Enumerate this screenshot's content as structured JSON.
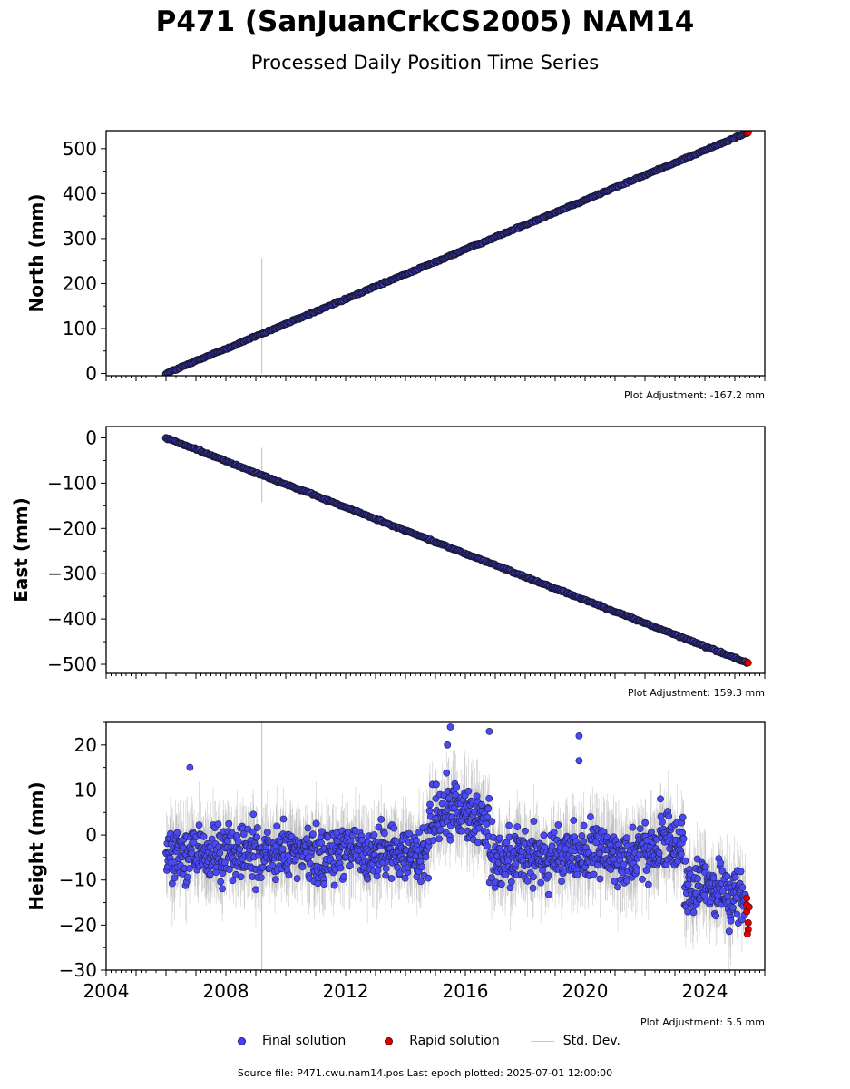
{
  "header": {
    "title": "P471 (SanJuanCrkCS2005) NAM14",
    "subtitle": "Processed Daily Position Time Series"
  },
  "colors": {
    "final_fill": "#4a4af5",
    "final_edge": "#1a1a40",
    "rapid_fill": "#e00000",
    "std_dev": "#9a9a9a"
  },
  "chart_data": [
    {
      "type": "scatter",
      "name": "north",
      "ylabel": "North (mm)",
      "ylim": [
        -5,
        540
      ],
      "yticks": [
        0,
        100,
        200,
        300,
        400,
        500
      ],
      "xlim": [
        2004,
        2026
      ],
      "adjustment": "Plot Adjustment: -167.2 mm",
      "trend": {
        "start": [
          2006.0,
          0
        ],
        "end": [
          2025.4,
          535
        ]
      },
      "outlier_bar": {
        "x": 2009.2,
        "y0": 0,
        "y1": 257
      },
      "rapid_points": [
        [
          2025.42,
          534
        ],
        [
          2025.45,
          536
        ]
      ]
    },
    {
      "type": "scatter",
      "name": "east",
      "ylabel": "East (mm)",
      "ylim": [
        -520,
        25
      ],
      "yticks": [
        0,
        -100,
        -200,
        -300,
        -400,
        -500
      ],
      "xlim": [
        2004,
        2026
      ],
      "adjustment": "Plot Adjustment: 159.3 mm",
      "trend": {
        "start": [
          2006.0,
          0
        ],
        "end": [
          2025.4,
          -496
        ]
      },
      "outlier_bar": {
        "x": 2009.2,
        "y0": -142,
        "y1": -22
      },
      "rapid_points": [
        [
          2025.42,
          -495
        ],
        [
          2025.45,
          -497
        ]
      ]
    },
    {
      "type": "scatter",
      "name": "height",
      "ylabel": "Height (mm)",
      "ylim": [
        -30,
        25
      ],
      "yticks": [
        20,
        10,
        0,
        -10,
        -20,
        -30
      ],
      "xlim": [
        2004,
        2026
      ],
      "xticks": [
        2004,
        2008,
        2012,
        2016,
        2020,
        2024
      ],
      "adjustment": "Plot Adjustment: 5.5 mm",
      "outlier_bar": {
        "x": 2009.2,
        "y0": -30,
        "y1": 25
      },
      "highlights": [
        [
          2015.5,
          24
        ],
        [
          2016.8,
          23
        ],
        [
          2019.8,
          22
        ],
        [
          2019.8,
          16.5
        ],
        [
          2015.4,
          20
        ],
        [
          2006.8,
          15
        ]
      ],
      "rapid_points": [
        [
          2025.4,
          -14
        ],
        [
          2025.4,
          -15.5
        ],
        [
          2025.4,
          -17
        ],
        [
          2025.45,
          -19.5
        ],
        [
          2025.45,
          -21
        ],
        [
          2025.42,
          -22
        ],
        [
          2025.48,
          -16
        ]
      ]
    }
  ],
  "legend": {
    "final": "Final solution",
    "rapid": "Rapid solution",
    "std": "Std. Dev."
  },
  "source": "Source file: P471.cwu.nam14.pos  Last epoch plotted: 2025-07-01 12:00:00"
}
